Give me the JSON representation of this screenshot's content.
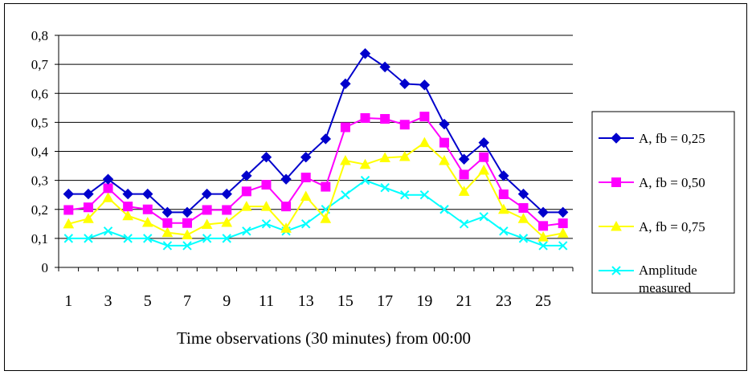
{
  "chart_data": {
    "type": "line",
    "title": "",
    "xlabel": "Time observations (30 minutes) from 00:00",
    "ylabel": "",
    "x": [
      1,
      2,
      3,
      4,
      5,
      6,
      7,
      8,
      9,
      10,
      11,
      12,
      13,
      14,
      15,
      16,
      17,
      18,
      19,
      20,
      21,
      22,
      23,
      24,
      25,
      26
    ],
    "x_tick_labels": [
      "1",
      "3",
      "5",
      "7",
      "9",
      "11",
      "13",
      "15",
      "17",
      "19",
      "21",
      "23",
      "25"
    ],
    "x_tick_values": [
      1,
      3,
      5,
      7,
      9,
      11,
      13,
      15,
      17,
      19,
      21,
      23,
      25
    ],
    "y_tick_labels": [
      "0",
      "0,1",
      "0,2",
      "0,3",
      "0,4",
      "0,5",
      "0,6",
      "0,7",
      "0,8"
    ],
    "y_tick_values": [
      0,
      0.1,
      0.2,
      0.3,
      0.4,
      0.5,
      0.6,
      0.7,
      0.8
    ],
    "ylim": [
      0,
      0.8
    ],
    "grid": "horizontal",
    "legend_position": "right",
    "series": [
      {
        "name": "A, fb = 0,25",
        "color": "#0000CC",
        "marker": "diamond",
        "values": [
          0.253,
          0.253,
          0.304,
          0.253,
          0.253,
          0.19,
          0.19,
          0.253,
          0.253,
          0.316,
          0.38,
          0.304,
          0.38,
          0.443,
          0.633,
          0.737,
          0.691,
          0.633,
          0.629,
          0.494,
          0.373,
          0.43,
          0.316,
          0.253,
          0.19,
          0.19
        ]
      },
      {
        "name": "A, fb = 0,50",
        "color": "#FF00FF",
        "marker": "square",
        "values": [
          0.198,
          0.207,
          0.273,
          0.21,
          0.2,
          0.153,
          0.153,
          0.198,
          0.198,
          0.262,
          0.285,
          0.21,
          0.31,
          0.278,
          0.483,
          0.515,
          0.512,
          0.492,
          0.52,
          0.43,
          0.32,
          0.38,
          0.252,
          0.205,
          0.143,
          0.152
        ]
      },
      {
        "name": "A, fb = 0,75",
        "color": "#FFFF00",
        "marker": "triangle",
        "values": [
          0.15,
          0.168,
          0.24,
          0.178,
          0.155,
          0.12,
          0.112,
          0.148,
          0.155,
          0.21,
          0.21,
          0.135,
          0.245,
          0.168,
          0.368,
          0.355,
          0.378,
          0.382,
          0.43,
          0.368,
          0.262,
          0.335,
          0.2,
          0.168,
          0.105,
          0.118
        ]
      },
      {
        "name": "Amplitude measured",
        "name_lines": [
          "Amplitude",
          "measured"
        ],
        "color": "#00FFFF",
        "marker": "x",
        "values": [
          0.1,
          0.1,
          0.125,
          0.1,
          0.1,
          0.075,
          0.075,
          0.1,
          0.1,
          0.125,
          0.15,
          0.125,
          0.15,
          0.2,
          0.25,
          0.3,
          0.275,
          0.25,
          0.25,
          0.2,
          0.15,
          0.175,
          0.125,
          0.1,
          0.075,
          0.075
        ]
      }
    ]
  }
}
